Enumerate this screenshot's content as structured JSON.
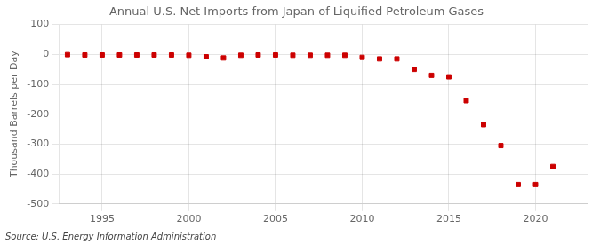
{
  "chart_data": {
    "type": "scatter",
    "title": "Annual U.S. Net Imports from Japan of Liquified Petroleum Gases",
    "ylabel": "Thousand Barrels per Day",
    "annotations": [
      "Source: U.S. Energy Information Administration"
    ],
    "x": [
      1993,
      1994,
      1995,
      1996,
      1997,
      1998,
      1999,
      2000,
      2001,
      2002,
      2003,
      2004,
      2005,
      2006,
      2007,
      2008,
      2009,
      2010,
      2011,
      2012,
      2013,
      2014,
      2015,
      2016,
      2017,
      2018,
      2019,
      2020,
      2021
    ],
    "values": [
      -1,
      -2,
      -2,
      -2,
      -2,
      -2,
      -2,
      -3,
      -8,
      -12,
      -3,
      -2,
      -2,
      -3,
      -3,
      -3,
      -3,
      -10,
      -15,
      -15,
      -50,
      -70,
      -75,
      -155,
      -235,
      -305,
      -435,
      -435,
      -375
    ],
    "color": "#cc0000",
    "marker": "square",
    "xlim": [
      1992.5,
      2023
    ],
    "xticks": [
      1995,
      2000,
      2005,
      2010,
      2015,
      2020
    ],
    "ylim": [
      -500,
      100
    ],
    "yticks": [
      100,
      0,
      -100,
      -200,
      -300,
      -400,
      -500
    ],
    "grid": true
  }
}
